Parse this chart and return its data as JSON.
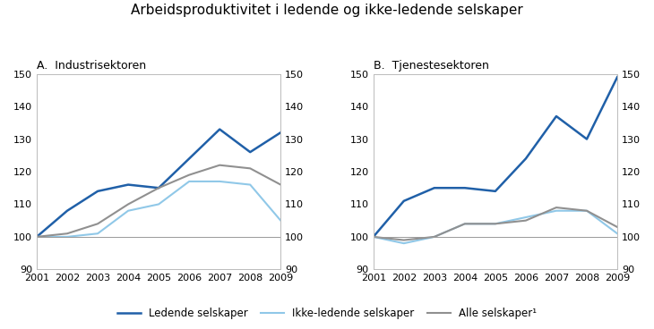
{
  "title": "Arbeidsproduktivitet i ledende og ikke-ledende selskaper",
  "years": [
    2001,
    2002,
    2003,
    2004,
    2005,
    2006,
    2007,
    2008,
    2009
  ],
  "panel_A_title": "A.  Industrisektoren",
  "panel_B_title": "B.  Tjenestesektoren",
  "industri": {
    "ledende": [
      100,
      108,
      114,
      116,
      115,
      124,
      133,
      126,
      132
    ],
    "ikke_ledende": [
      100,
      100,
      101,
      108,
      110,
      117,
      117,
      116,
      105
    ],
    "alle": [
      100,
      101,
      104,
      110,
      115,
      119,
      122,
      121,
      116
    ]
  },
  "tjeneste": {
    "ledende": [
      100,
      111,
      115,
      115,
      114,
      124,
      137,
      130,
      149
    ],
    "ikke_ledende": [
      100,
      98,
      100,
      104,
      104,
      106,
      108,
      108,
      101
    ],
    "alle": [
      100,
      99,
      100,
      104,
      104,
      105,
      109,
      108,
      103
    ]
  },
  "ylim": [
    90,
    150
  ],
  "yticks": [
    90,
    100,
    110,
    120,
    130,
    140,
    150
  ],
  "color_ledende": "#2060a8",
  "color_ikke_ledende": "#90c8e8",
  "color_alle": "#909090",
  "legend_labels": [
    "Ledende selskaper",
    "Ikke-ledende selskaper",
    "Alle selskaper¹"
  ],
  "background_color": "#ffffff",
  "title_fontsize": 11,
  "panel_fontsize": 9,
  "tick_fontsize": 8,
  "legend_fontsize": 8.5
}
